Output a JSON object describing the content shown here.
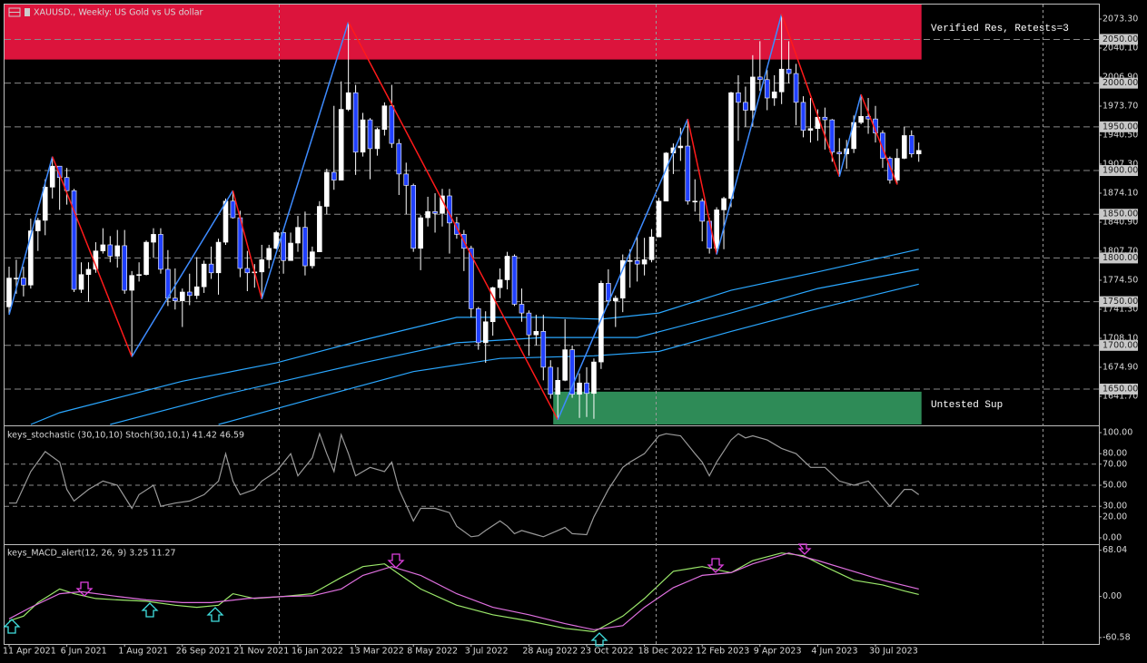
{
  "header": {
    "title": "XAUUSD., Weekly: US Gold vs US dollar"
  },
  "chart_data": [
    {
      "type": "candlestick",
      "categories": [
        "11 Apr 2021",
        null,
        null,
        null,
        null,
        null,
        null,
        null,
        "6 Jun 2021",
        null,
        null,
        null,
        null,
        null,
        null,
        null,
        "1 Aug 2021",
        null,
        null,
        null,
        null,
        null,
        null,
        null,
        "26 Sep 2021",
        null,
        null,
        null,
        null,
        null,
        null,
        null,
        "21 Nov 2021",
        null,
        null,
        null,
        null,
        null,
        null,
        null,
        "16 Jan 2022",
        null,
        null,
        null,
        null,
        null,
        null,
        null,
        "13 Mar 2022",
        null,
        null,
        null,
        null,
        null,
        null,
        null,
        "8 May 2022",
        null,
        null,
        null,
        null,
        null,
        null,
        null,
        "3 Jul 2022",
        null,
        null,
        null,
        null,
        null,
        null,
        null,
        "28 Aug 2022",
        null,
        null,
        null,
        null,
        null,
        null,
        null,
        "23 Oct 2022",
        null,
        null,
        null,
        null,
        null,
        null,
        null,
        "18 Dec 2022",
        null,
        null,
        null,
        null,
        null,
        null,
        null,
        "12 Feb 2023",
        null,
        null,
        null,
        null,
        null,
        null,
        null,
        "9 Apr 2023",
        null,
        null,
        null,
        null,
        null,
        null,
        null,
        "4 Jun 2023",
        null,
        null,
        null,
        null,
        null,
        null,
        null,
        "30 Jul 2023",
        null,
        null,
        null,
        null,
        null,
        null
      ],
      "open": [
        1744,
        1777,
        1777,
        1769,
        1831,
        1843,
        1881,
        1905,
        1892,
        1877,
        1764,
        1781,
        1787,
        1808,
        1815,
        1802,
        1814,
        1763,
        1780,
        1781,
        1818,
        1827,
        1787,
        1754,
        1751,
        1761,
        1757,
        1767,
        1793,
        1783,
        1818,
        1865,
        1846,
        1788,
        1783,
        1784,
        1798,
        1811,
        1829,
        1797,
        1817,
        1835,
        1791,
        1807,
        1859,
        1898,
        1889,
        1970,
        1989,
        1921,
        1958,
        1925,
        1947,
        1974,
        1931,
        1896,
        1883,
        1811,
        1846,
        1853,
        1851,
        1871,
        1840,
        1827,
        1811,
        1742,
        1703,
        1727,
        1766,
        1775,
        1802,
        1747,
        1737,
        1712,
        1716,
        1675,
        1644,
        1660,
        1695,
        1644,
        1657,
        1645,
        1681,
        1771,
        1751,
        1754,
        1797,
        1797,
        1793,
        1798,
        1824,
        1865,
        1920,
        1926,
        1928,
        1865,
        1865,
        1842,
        1811,
        1855,
        1868,
        1989,
        1978,
        1969,
        2007,
        2004,
        1983,
        1990,
        2016,
        2011,
        1978,
        1946,
        1948,
        1961,
        1958,
        1921,
        1919,
        1925,
        1955,
        1962,
        1959,
        1943,
        1914,
        1889,
        1914,
        1940,
        1919
      ],
      "high": [
        1790,
        1798,
        1790,
        1845,
        1846,
        1890,
        1916,
        1904,
        1903,
        1879,
        1795,
        1795,
        1818,
        1834,
        1825,
        1832,
        1832,
        1785,
        1795,
        1820,
        1834,
        1834,
        1809,
        1788,
        1765,
        1782,
        1801,
        1797,
        1813,
        1822,
        1868,
        1877,
        1854,
        1808,
        1793,
        1815,
        1815,
        1831,
        1830,
        1829,
        1848,
        1853,
        1813,
        1865,
        1902,
        1974,
        2002,
        2070,
        1998,
        1966,
        1960,
        1949,
        1978,
        1998,
        1936,
        1909,
        1885,
        1849,
        1870,
        1874,
        1879,
        1879,
        1847,
        1832,
        1814,
        1744,
        1739,
        1767,
        1788,
        1807,
        1804,
        1765,
        1740,
        1735,
        1735,
        1683,
        1675,
        1730,
        1700,
        1668,
        1675,
        1685,
        1774,
        1787,
        1757,
        1804,
        1810,
        1824,
        1823,
        1833,
        1869,
        1921,
        1931,
        1949,
        1959,
        1890,
        1868,
        1846,
        1858,
        1870,
        1990,
        2009,
        1996,
        2032,
        2048,
        2015,
        2009,
        2079,
        2048,
        2022,
        1985,
        1983,
        1970,
        1972,
        1959,
        1937,
        1935,
        1963,
        1987,
        1983,
        1974,
        1946,
        1916,
        1925,
        1950,
        1946,
        1932
      ],
      "low": [
        1735,
        1759,
        1756,
        1765,
        1808,
        1826,
        1868,
        1855,
        1861,
        1761,
        1760,
        1750,
        1783,
        1805,
        1795,
        1789,
        1759,
        1687,
        1773,
        1780,
        1800,
        1782,
        1745,
        1741,
        1721,
        1746,
        1753,
        1760,
        1776,
        1758,
        1815,
        1845,
        1778,
        1762,
        1766,
        1753,
        1788,
        1810,
        1782,
        1797,
        1807,
        1780,
        1788,
        1807,
        1850,
        1878,
        1890,
        1968,
        1895,
        1916,
        1890,
        1917,
        1940,
        1926,
        1872,
        1850,
        1807,
        1786,
        1836,
        1829,
        1836,
        1805,
        1822,
        1785,
        1732,
        1695,
        1680,
        1711,
        1754,
        1764,
        1745,
        1727,
        1688,
        1700,
        1660,
        1639,
        1615,
        1659,
        1640,
        1617,
        1618,
        1616,
        1673,
        1746,
        1721,
        1738,
        1766,
        1773,
        1780,
        1795,
        1824,
        1865,
        1896,
        1911,
        1861,
        1853,
        1819,
        1805,
        1804,
        1810,
        1858,
        1934,
        1950,
        1950,
        1991,
        1969,
        1974,
        1976,
        2000,
        1952,
        1938,
        1932,
        1934,
        1924,
        1910,
        1893,
        1902,
        1920,
        1953,
        1942,
        1932,
        1903,
        1885,
        1884,
        1913,
        1915,
        1910
      ],
      "close": [
        1777,
        1777,
        1769,
        1831,
        1843,
        1881,
        1905,
        1892,
        1877,
        1764,
        1781,
        1787,
        1808,
        1815,
        1802,
        1814,
        1763,
        1780,
        1781,
        1818,
        1827,
        1787,
        1754,
        1751,
        1761,
        1757,
        1767,
        1793,
        1783,
        1818,
        1865,
        1846,
        1788,
        1783,
        1784,
        1798,
        1811,
        1829,
        1797,
        1817,
        1835,
        1791,
        1807,
        1859,
        1898,
        1889,
        1970,
        1989,
        1921,
        1958,
        1925,
        1947,
        1974,
        1931,
        1896,
        1883,
        1811,
        1846,
        1853,
        1851,
        1871,
        1840,
        1827,
        1811,
        1742,
        1703,
        1727,
        1766,
        1775,
        1802,
        1747,
        1737,
        1712,
        1716,
        1675,
        1644,
        1660,
        1695,
        1644,
        1657,
        1645,
        1681,
        1771,
        1751,
        1754,
        1797,
        1797,
        1793,
        1798,
        1824,
        1865,
        1920,
        1926,
        1928,
        1865,
        1865,
        1842,
        1811,
        1855,
        1868,
        1989,
        1978,
        1969,
        2007,
        2004,
        1983,
        1990,
        2016,
        2011,
        1978,
        1946,
        1948,
        1961,
        1958,
        1921,
        1919,
        1925,
        1955,
        1962,
        1959,
        1943,
        1914,
        1889,
        1914,
        1940,
        1919,
        1923
      ],
      "up_color": "#ffffff",
      "down_color": "#2040ff",
      "ylim": [
        1609.5,
        2089.9
      ],
      "yticks": [
        {
          "value": 2073.3,
          "label": "2073.30"
        },
        {
          "value": 2040.1,
          "label": "2040.10"
        },
        {
          "value": 2006.9,
          "label": "2006.90"
        },
        {
          "value": 1973.7,
          "label": "1973.70"
        },
        {
          "value": 1940.5,
          "label": "1940.50"
        },
        {
          "value": 1907.3,
          "label": "1907.30"
        },
        {
          "value": 1874.1,
          "label": "1874.10"
        },
        {
          "value": 1840.9,
          "label": "1840.90"
        },
        {
          "value": 1807.7,
          "label": "1807.70"
        },
        {
          "value": 1774.5,
          "label": "1774.50"
        },
        {
          "value": 1741.3,
          "label": "1741.30"
        },
        {
          "value": 1708.1,
          "label": "1708.10"
        },
        {
          "value": 1674.9,
          "label": "1674.90"
        },
        {
          "value": 1641.7,
          "label": "1641.70"
        }
      ],
      "levels": [
        {
          "value": 2050,
          "label": "2050.00"
        },
        {
          "value": 2000,
          "label": "2000.00"
        },
        {
          "value": 1950,
          "label": "1950.00"
        },
        {
          "value": 1900,
          "label": "1900.00"
        },
        {
          "value": 1850,
          "label": "1850.00"
        },
        {
          "value": 1800,
          "label": "1800.00"
        },
        {
          "value": 1750,
          "label": "1750.00"
        },
        {
          "value": 1700,
          "label": "1700.00"
        },
        {
          "value": 1650,
          "label": "1650.00"
        }
      ],
      "zones": [
        {
          "label": "Verified Res, Retests=3",
          "low": 2027,
          "high": 2089.9,
          "from": 0,
          "color": "#dc143c"
        },
        {
          "label": "Untested Sup",
          "low": 1609.5,
          "high": 1647,
          "from": 76,
          "color": "#2e8b57"
        }
      ],
      "moving_averages": [
        {
          "color": "#2aa7ff",
          "x": [
            3,
            7,
            24,
            37,
            49,
            62,
            74,
            82,
            90,
            100,
            112,
            126
          ],
          "values": [
            1609.5,
            1623,
            1659,
            1680,
            1706,
            1732,
            1732,
            1730,
            1737,
            1763,
            1784,
            1810
          ]
        },
        {
          "color": "#2aa7ff",
          "x": [
            14,
            30,
            49,
            62,
            74,
            87,
            100,
            112,
            126
          ],
          "values": [
            1609.5,
            1644,
            1680,
            1703,
            1709,
            1709,
            1737,
            1765,
            1787
          ]
        },
        {
          "color": "#2aa7ff",
          "x": [
            29,
            43,
            56,
            68,
            81,
            90,
            100,
            112,
            126
          ],
          "values": [
            1609.5,
            1641,
            1670,
            1685,
            1688,
            1693,
            1716,
            1742,
            1770
          ]
        }
      ],
      "zigzag": {
        "x": [
          0,
          6,
          17,
          31,
          35,
          47,
          76,
          94,
          98,
          107,
          115,
          118,
          123
        ],
        "values": [
          1735,
          1916,
          1687,
          1877,
          1753,
          2070,
          1615,
          1959,
          1804,
          2079,
          1893,
          1987,
          1884
        ],
        "up_color": "#3d8bff",
        "down_color": "#ff1a1a"
      }
    },
    {
      "type": "line",
      "title": "keys_stochastic (30,10,10) Stoch(30,10,1) 41.42 46.59",
      "ylim": [
        0,
        100
      ],
      "yticks": [
        {
          "value": 100,
          "label": "100.00"
        },
        {
          "value": 80,
          "label": "80.00"
        },
        {
          "value": 70,
          "label": "70.00"
        },
        {
          "value": 50,
          "label": "50.00"
        },
        {
          "value": 30,
          "label": "30.00"
        },
        {
          "value": 20,
          "label": "20.00"
        },
        {
          "value": 0,
          "label": "0.00"
        }
      ],
      "dashed_levels": [
        70,
        50,
        30
      ],
      "series": [
        {
          "color": "#9a9a9a",
          "x": [
            0,
            1,
            3,
            5,
            7,
            8,
            9,
            11,
            13,
            15,
            17,
            18,
            20,
            21,
            23,
            25,
            27,
            29,
            30,
            31,
            32,
            34,
            35,
            37,
            39,
            40,
            42,
            43,
            44,
            45,
            46,
            47,
            48,
            50,
            52,
            53,
            54,
            56,
            57,
            59,
            61,
            62,
            64,
            65,
            66,
            68,
            69,
            70,
            71,
            73,
            74,
            76,
            77,
            78,
            80,
            81,
            83,
            85,
            86,
            88,
            90,
            91,
            93,
            95,
            96,
            97,
            98,
            100,
            101,
            102,
            103,
            105,
            107,
            109,
            111,
            113,
            115,
            117,
            119,
            120,
            122,
            124,
            125,
            126
          ],
          "values": [
            33,
            33,
            63,
            82,
            72,
            46,
            35,
            46,
            54,
            50,
            28,
            41,
            50,
            30,
            33,
            35,
            41,
            54,
            80,
            54,
            41,
            46,
            54,
            63,
            80,
            59,
            76,
            99,
            80,
            63,
            98,
            80,
            59,
            67,
            63,
            72,
            46,
            16,
            28,
            28,
            24,
            11,
            1,
            2,
            7,
            16,
            11,
            4,
            7,
            3,
            1,
            7,
            10,
            4,
            3,
            20,
            46,
            67,
            72,
            80,
            97,
            99,
            97,
            80,
            72,
            59,
            72,
            93,
            99,
            95,
            97,
            93,
            85,
            80,
            67,
            67,
            54,
            50,
            54,
            46,
            30,
            46,
            46,
            41
          ]
        }
      ]
    },
    {
      "type": "line",
      "title": "keys_MACD_alert(12, 26, 9) 3.25 11.27",
      "ylim": [
        -70,
        73
      ],
      "yticks": [
        {
          "value": 68.04,
          "label": "68.04"
        },
        {
          "value": 0,
          "label": "0.00"
        },
        {
          "value": -60.58,
          "label": "-60.58"
        }
      ],
      "series": [
        {
          "color": "#9be86a",
          "x": [
            0,
            2,
            4,
            7,
            9,
            12,
            15,
            19,
            23,
            26,
            29,
            31,
            34,
            38,
            42,
            46,
            49,
            52,
            54,
            57,
            62,
            67,
            72,
            77,
            81,
            85,
            88,
            92,
            96,
            100,
            103,
            107,
            110,
            113,
            117,
            121,
            124,
            126
          ],
          "values": [
            -36,
            -29,
            -9,
            11,
            4,
            -3,
            -5,
            -7,
            -13,
            -16,
            -13,
            4,
            -3,
            0,
            4,
            28,
            44,
            48,
            33,
            11,
            -13,
            -27,
            -36,
            -47,
            -52,
            -29,
            -3,
            37,
            44,
            35,
            53,
            64,
            60,
            44,
            24,
            17,
            8,
            3
          ]
        },
        {
          "color": "#e070e0",
          "x": [
            0,
            3,
            7,
            10,
            15,
            19,
            24,
            28,
            33,
            38,
            42,
            46,
            49,
            53,
            57,
            62,
            67,
            72,
            77,
            81,
            85,
            88,
            92,
            96,
            100,
            103,
            108,
            112,
            116,
            121,
            126
          ],
          "values": [
            -33,
            -16,
            4,
            7,
            0,
            -5,
            -9,
            -9,
            -3,
            0,
            1,
            11,
            31,
            44,
            31,
            4,
            -16,
            -27,
            -40,
            -49,
            -43,
            -16,
            13,
            31,
            35,
            48,
            64,
            53,
            40,
            24,
            11
          ]
        }
      ]
    }
  ]
}
